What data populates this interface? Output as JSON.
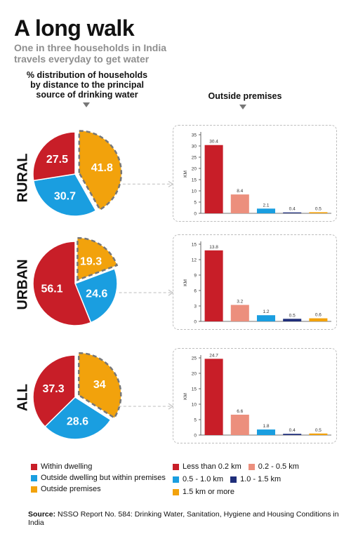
{
  "title": "A long walk",
  "subtitle": "One in three households in India\ntravels everyday to get water",
  "pie_heading": "% distribution of households\nby distance to the principal\nsource of drinking water",
  "bar_heading": "Outside premises",
  "legend_pie": [
    {
      "label": "Within dwelling",
      "color": "#c81e28"
    },
    {
      "label": "Outside dwelling but within premises",
      "color": "#1a9ee0"
    },
    {
      "label": "Outside premises",
      "color": "#f2a20c"
    }
  ],
  "legend_bars": [
    {
      "label": "Less than 0.2 km",
      "color": "#c81e28"
    },
    {
      "label": "0.2 - 0.5 km",
      "color": "#ec8f7d"
    },
    {
      "label": "0.5 - 1.0 km",
      "color": "#1a9ee0"
    },
    {
      "label": "1.0 - 1.5 km",
      "color": "#1f2e7a"
    },
    {
      "label": "1.5 km or more",
      "color": "#f2a20c"
    }
  ],
  "source_label": "Source:",
  "source_text": "NSSO Report No. 584: Drinking Water, Sanitation, Hygiene and Housing Conditions in India",
  "chart_data": [
    {
      "type": "pie",
      "region": "RURAL",
      "categories": [
        "Within dwelling",
        "Outside dwelling but within premises",
        "Outside premises"
      ],
      "values": [
        27.5,
        30.7,
        41.8
      ]
    },
    {
      "type": "bar",
      "region": "RURAL",
      "categories": [
        "Less than 0.2 km",
        "0.2 - 0.5 km",
        "0.5 - 1.0 km",
        "1.0 - 1.5 km",
        "1.5 km or more"
      ],
      "values": [
        30.4,
        8.4,
        2.1,
        0.4,
        0.5
      ],
      "ylabel": "KM",
      "ylim": [
        0,
        35
      ],
      "yticks": [
        0,
        5,
        10,
        15,
        20,
        25,
        30,
        35
      ]
    },
    {
      "type": "pie",
      "region": "URBAN",
      "categories": [
        "Within dwelling",
        "Outside dwelling but within premises",
        "Outside premises"
      ],
      "values": [
        56.1,
        24.6,
        19.3
      ]
    },
    {
      "type": "bar",
      "region": "URBAN",
      "categories": [
        "Less than 0.2 km",
        "0.2 - 0.5 km",
        "0.5 - 1.0 km",
        "1.0 - 1.5 km",
        "1.5 km or more"
      ],
      "values": [
        13.8,
        3.2,
        1.2,
        0.5,
        0.6
      ],
      "ylabel": "KM",
      "ylim": [
        0,
        15
      ],
      "yticks": [
        0,
        3,
        6,
        9,
        12,
        15
      ]
    },
    {
      "type": "pie",
      "region": "ALL",
      "categories": [
        "Within dwelling",
        "Outside dwelling but within premises",
        "Outside premises"
      ],
      "values": [
        37.3,
        28.6,
        34
      ]
    },
    {
      "type": "bar",
      "region": "ALL",
      "categories": [
        "Less than 0.2 km",
        "0.2 - 0.5 km",
        "0.5 - 1.0 km",
        "1.0 - 1.5 km",
        "1.5 km or more"
      ],
      "values": [
        24.7,
        6.6,
        1.8,
        0.4,
        0.5
      ],
      "ylabel": "KM",
      "ylim": [
        0,
        25
      ],
      "yticks": [
        0,
        5,
        10,
        15,
        20,
        25
      ]
    }
  ]
}
